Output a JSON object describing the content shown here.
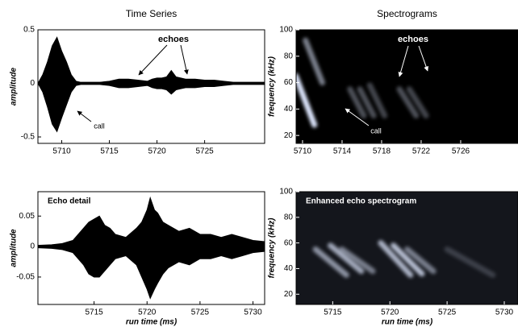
{
  "chart_data": [
    {
      "type": "area",
      "title": "Time Series",
      "y_label": "amplitude",
      "annotations": [
        "echoes",
        "call"
      ],
      "x": [
        5707.5,
        5708,
        5708.5,
        5709,
        5709.5,
        5710,
        5710.5,
        5711,
        5711.5,
        5712,
        5714,
        5715,
        5716,
        5717,
        5718,
        5719,
        5719.5,
        5720,
        5720.5,
        5721,
        5721.5,
        5722,
        5722.5,
        5723,
        5724,
        5725,
        5726,
        5727,
        5728,
        5730,
        5731.3
      ],
      "series": [
        {
          "color": "#000000",
          "values": [
            0,
            0.08,
            0.2,
            0.35,
            0.43,
            0.3,
            0.2,
            0.08,
            0.02,
            0.01,
            0.01,
            0.02,
            0.04,
            0.04,
            0.03,
            0.02,
            0.04,
            0.05,
            0.05,
            0.06,
            0.12,
            0.06,
            0.05,
            0.04,
            0.04,
            0.03,
            0.03,
            0.02,
            0.01,
            0.01,
            0.01
          ]
        },
        {
          "color": "#000000",
          "values": [
            0,
            -0.08,
            -0.22,
            -0.38,
            -0.45,
            -0.32,
            -0.2,
            -0.08,
            -0.02,
            -0.01,
            -0.01,
            -0.02,
            -0.04,
            -0.04,
            -0.03,
            -0.02,
            -0.04,
            -0.05,
            -0.05,
            -0.06,
            -0.1,
            -0.06,
            -0.05,
            -0.04,
            -0.04,
            -0.03,
            -0.03,
            -0.02,
            -0.01,
            -0.01,
            -0.01
          ]
        }
      ],
      "xlim": [
        5707.5,
        5731.3
      ],
      "xticks": [
        5710,
        5715,
        5720,
        5725
      ],
      "ylim": [
        -0.56,
        0.5
      ],
      "yticks": [
        0.5,
        0,
        -0.5
      ]
    },
    {
      "type": "spectrogram",
      "title": "Spectrograms",
      "y_label": "frequency (kHz)",
      "annotations": [
        "echoes",
        "call"
      ],
      "background": "#000000",
      "color": "#dfe8ff",
      "streaks": [
        {
          "x": [
            5709.3,
            5711.2
          ],
          "y": [
            65,
            28
          ],
          "intensity": 1
        },
        {
          "x": [
            5710.3,
            5712
          ],
          "y": [
            92,
            60
          ],
          "intensity": 0.55
        },
        {
          "x": [
            5714.8,
            5716.2
          ],
          "y": [
            55,
            35
          ],
          "intensity": 0.35
        },
        {
          "x": [
            5715.8,
            5717.2
          ],
          "y": [
            55,
            35
          ],
          "intensity": 0.35
        },
        {
          "x": [
            5716.8,
            5718.3
          ],
          "y": [
            58,
            35
          ],
          "intensity": 0.3
        },
        {
          "x": [
            5719.8,
            5721.5
          ],
          "y": [
            55,
            35
          ],
          "intensity": 0.35
        },
        {
          "x": [
            5720.8,
            5722.5
          ],
          "y": [
            55,
            35
          ],
          "intensity": 0.3
        }
      ],
      "xlim": [
        5709.35,
        5731.8
      ],
      "xticks": [
        5710,
        5714,
        5718,
        5722,
        5726
      ],
      "ylim": [
        14,
        100
      ],
      "yticks": [
        20,
        40,
        60,
        80,
        100
      ]
    },
    {
      "type": "area",
      "label": "Echo detail",
      "y_label": "amplitude",
      "x_label": "run time (ms)",
      "x": [
        5709.7,
        5711,
        5712,
        5713,
        5714,
        5714.5,
        5715,
        5715.5,
        5716,
        5716.5,
        5717,
        5718,
        5719,
        5719.5,
        5720,
        5720.3,
        5720.7,
        5721,
        5721.5,
        5722,
        5723,
        5724,
        5725,
        5726,
        5727,
        5728,
        5729,
        5730,
        5731.1
      ],
      "series": [
        {
          "color": "#000000",
          "values": [
            0.002,
            0.003,
            0.005,
            0.01,
            0.03,
            0.04,
            0.045,
            0.05,
            0.035,
            0.03,
            0.02,
            0.015,
            0.03,
            0.04,
            0.06,
            0.08,
            0.06,
            0.055,
            0.04,
            0.035,
            0.025,
            0.03,
            0.02,
            0.02,
            0.015,
            0.02,
            0.015,
            0.01,
            0.008
          ]
        },
        {
          "color": "#000000",
          "values": [
            -0.002,
            -0.003,
            -0.005,
            -0.01,
            -0.03,
            -0.045,
            -0.05,
            -0.05,
            -0.04,
            -0.03,
            -0.02,
            -0.015,
            -0.03,
            -0.05,
            -0.07,
            -0.085,
            -0.07,
            -0.06,
            -0.045,
            -0.035,
            -0.025,
            -0.03,
            -0.02,
            -0.02,
            -0.015,
            -0.02,
            -0.015,
            -0.01,
            -0.008
          ]
        }
      ],
      "xlim": [
        5709.7,
        5731.1
      ],
      "xticks": [
        5715,
        5720,
        5725,
        5730
      ],
      "ylim": [
        -0.095,
        0.09
      ],
      "yticks": [
        0.05,
        0,
        -0.05
      ]
    },
    {
      "type": "spectrogram",
      "label": "Enhanced echo spectrogram",
      "y_label": "frequency (kHz)",
      "x_label": "run time (ms)",
      "background": "#14161c",
      "color": "#dfe8ff",
      "streaks": [
        {
          "x": [
            5713.5,
            5716.2
          ],
          "y": [
            55,
            35
          ],
          "intensity": 0.6
        },
        {
          "x": [
            5714.8,
            5717.5
          ],
          "y": [
            58,
            38
          ],
          "intensity": 0.7
        },
        {
          "x": [
            5715.8,
            5718.5
          ],
          "y": [
            55,
            38
          ],
          "intensity": 0.5
        },
        {
          "x": [
            5719.2,
            5721.8
          ],
          "y": [
            60,
            35
          ],
          "intensity": 0.75
        },
        {
          "x": [
            5720.3,
            5722.8
          ],
          "y": [
            58,
            36
          ],
          "intensity": 0.8
        },
        {
          "x": [
            5721.5,
            5723.8
          ],
          "y": [
            55,
            38
          ],
          "intensity": 0.5
        },
        {
          "x": [
            5725,
            5729
          ],
          "y": [
            55,
            35
          ],
          "intensity": 0.2
        }
      ],
      "xlim": [
        5711.8,
        5731.2
      ],
      "xticks": [
        5715,
        5720,
        5725,
        5730
      ],
      "ylim": [
        12,
        100
      ],
      "yticks": [
        20,
        40,
        60,
        80,
        100
      ]
    }
  ]
}
